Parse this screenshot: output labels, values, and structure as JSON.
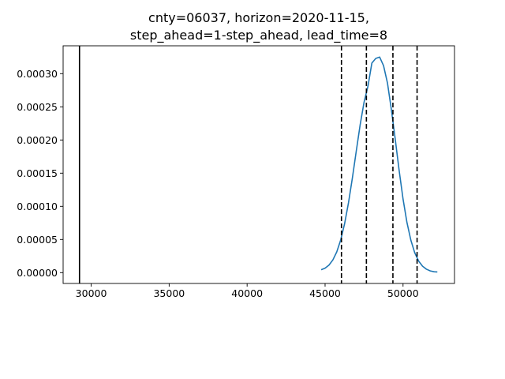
{
  "chart_data": {
    "type": "line",
    "title": [
      "cnty=06037, horizon=2020-11-15,",
      "step_ahead=1-step_ahead, lead_time=8"
    ],
    "xlabel": "",
    "ylabel": "",
    "xlim": [
      28200,
      53300
    ],
    "ylim": [
      -1.63e-05,
      0.000342
    ],
    "x_ticks": [
      30000,
      35000,
      40000,
      45000,
      50000
    ],
    "x_tick_labels": [
      "30000",
      "35000",
      "40000",
      "45000",
      "50000"
    ],
    "y_ticks": [
      0.0,
      5e-05,
      0.0001,
      0.00015,
      0.0002,
      0.00025,
      0.0003
    ],
    "y_tick_labels": [
      "0.00000",
      "0.00005",
      "0.00010",
      "0.00015",
      "0.00020",
      "0.00025",
      "0.00030"
    ],
    "grid": false,
    "series": [
      {
        "color": "#1f77b4",
        "x": [
          44750,
          45000,
          45250,
          45500,
          45750,
          46000,
          46250,
          46500,
          46750,
          47000,
          47250,
          47500,
          47750,
          48000,
          48250,
          48500,
          48750,
          49000,
          49250,
          49500,
          49750,
          50000,
          50250,
          50500,
          50750,
          51000,
          51250,
          51500,
          51750,
          52000,
          52200
        ],
        "y": [
          4.4e-06,
          6.8e-06,
          1.14e-05,
          1.92e-05,
          3.13e-05,
          4.91e-05,
          7.36e-05,
          0.0001052,
          0.0001426,
          0.0001833,
          0.000223,
          0.000257,
          0.000281,
          0.000316,
          0.000323,
          0.000325,
          0.000312,
          0.000286,
          0.000246,
          0.000201,
          0.000154,
          0.000111,
          7.57e-05,
          4.9e-05,
          3e-05,
          1.75e-05,
          9.7e-06,
          5.2e-06,
          2.6e-06,
          1.3e-06,
          1e-06
        ]
      }
    ],
    "vertical_lines": [
      {
        "x": 29250,
        "style": "solid",
        "color": "#000000"
      },
      {
        "x": 46050,
        "style": "dashed",
        "color": "#000000"
      },
      {
        "x": 47650,
        "style": "dashed",
        "color": "#000000"
      },
      {
        "x": 49350,
        "style": "dashed",
        "color": "#000000"
      },
      {
        "x": 50900,
        "style": "dashed",
        "color": "#000000"
      }
    ]
  }
}
